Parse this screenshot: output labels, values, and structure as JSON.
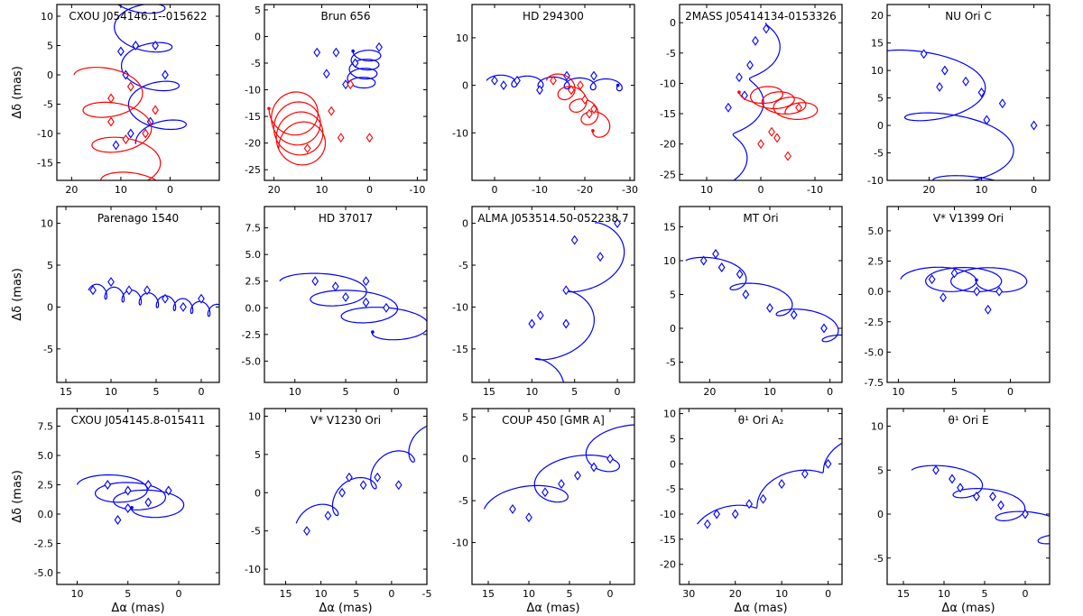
{
  "figure": {
    "xlabel": "Δα (mas)",
    "ylabel": "Δδ (mas)",
    "colors": {
      "primary": "#0000ff",
      "secondary": "#ff0000",
      "axis": "#000000"
    }
  },
  "chart_data": [
    {
      "type": "line",
      "title": "CXOU J054146.1--015622",
      "xlim": [
        23,
        -10
      ],
      "ylim": [
        -18,
        12
      ],
      "xticks": [
        20,
        10,
        0
      ],
      "yticks": [
        10,
        5,
        0,
        -5,
        -10,
        -15
      ],
      "series": [
        {
          "name": "primary",
          "color": "#0000ff",
          "cx": 6,
          "cy": -5.5,
          "rx": 5.5,
          "ry": 2.2,
          "vx": 0.05,
          "vy": 0.8,
          "n": 4,
          "start": [
            1.5,
            -11.8
          ],
          "markers": 6,
          "sampled": [
            [
              10,
              4
            ],
            [
              7,
              5
            ],
            [
              3,
              5
            ],
            [
              1,
              0
            ],
            [
              9,
              0
            ],
            [
              4,
              -8
            ],
            [
              8,
              -10
            ],
            [
              11,
              -12
            ]
          ]
        },
        {
          "name": "secondary",
          "color": "#ff0000",
          "cx": 7,
          "cy": -5,
          "rx": 6.5,
          "ry": 2.6,
          "vx": -0.05,
          "vy": -0.75,
          "n": 4,
          "start": [
            13,
            0
          ],
          "markers": 7,
          "sampled": [
            [
              12,
              -4
            ],
            [
              8,
              -2
            ],
            [
              3,
              -6
            ],
            [
              12,
              -8
            ],
            [
              5,
              -10
            ],
            [
              9,
              -11
            ]
          ]
        }
      ]
    },
    {
      "type": "line",
      "title": "Brun 656",
      "xlim": [
        22,
        -12
      ],
      "ylim": [
        -27,
        6
      ],
      "xticks": [
        20,
        10,
        0,
        -10
      ],
      "yticks": [
        5,
        0,
        -5,
        -10,
        -15,
        -20,
        -25
      ],
      "series": [
        {
          "name": "primary",
          "color": "#0000ff",
          "cx": 8,
          "cy": -6.5,
          "rx": 3,
          "ry": 1.4,
          "vx": -0.3,
          "vy": 0.15,
          "n": 4,
          "start": [
            2,
            -9.5
          ],
          "markers": 6,
          "sampled": [
            [
              11,
              -3
            ],
            [
              7,
              -3
            ],
            [
              3,
              -5
            ],
            [
              9,
              -7
            ],
            [
              5,
              -9
            ],
            [
              -2,
              -2
            ]
          ]
        },
        {
          "name": "secondary",
          "color": "#ff0000",
          "cx": 6,
          "cy": -11,
          "rx": 5,
          "ry": 4.5,
          "vx": 0.4,
          "vy": -0.1,
          "n": 4,
          "start": [
            14,
            -21
          ],
          "markers": 5,
          "sampled": [
            [
              13,
              -21
            ],
            [
              8,
              -14
            ],
            [
              4,
              -9
            ],
            [
              0,
              -19
            ],
            [
              6,
              -19
            ]
          ]
        }
      ]
    },
    {
      "type": "line",
      "title": "HD 294300",
      "xlim": [
        5,
        -31
      ],
      "ylim": [
        -20,
        17
      ],
      "xticks": [
        0,
        -10,
        -20,
        -30
      ],
      "yticks": [
        10,
        0,
        -10
      ],
      "series": [
        {
          "name": "primary",
          "color": "#0000ff",
          "cx": -4,
          "cy": 0,
          "rx": 1.8,
          "ry": 1.2,
          "vx": -0.8,
          "vy": 0,
          "n": 5,
          "start": [
            0,
            1
          ],
          "markers": 4,
          "sampled": [
            [
              0,
              1
            ],
            [
              -2,
              0
            ],
            [
              -5,
              1
            ],
            [
              -10,
              -1
            ],
            [
              -16,
              2
            ],
            [
              -22,
              2
            ]
          ]
        },
        {
          "name": "secondary",
          "color": "#ff0000",
          "cx": -18,
          "cy": -2,
          "rx": 2.5,
          "ry": 2,
          "vx": -0.25,
          "vy": -0.3,
          "n": 4,
          "start": [
            -14,
            1
          ],
          "markers": 7,
          "sampled": [
            [
              -13,
              1
            ],
            [
              -17,
              -1
            ],
            [
              -20,
              -3
            ],
            [
              -22,
              -5
            ],
            [
              -19,
              0
            ],
            [
              -21,
              -6
            ]
          ]
        }
      ]
    },
    {
      "type": "line",
      "title": "2MASS J05414134-0153326",
      "xlim": [
        15,
        -15
      ],
      "ylim": [
        -26,
        3
      ],
      "xticks": [
        10,
        0,
        -10
      ],
      "yticks": [
        0,
        -5,
        -10,
        -15,
        -20,
        -25
      ],
      "series": [
        {
          "name": "primary",
          "color": "#0000ff",
          "cx": 2,
          "cy": -6,
          "rx": 2,
          "ry": 1,
          "vx": 0.35,
          "vy": -1.3,
          "n": 6,
          "start": [
            -3,
            0
          ],
          "markers": 6,
          "sampled": [
            [
              -1,
              -1
            ],
            [
              1,
              -3
            ],
            [
              2,
              -7
            ],
            [
              4,
              -9
            ],
            [
              3,
              -12
            ],
            [
              6,
              -14
            ]
          ]
        },
        {
          "name": "secondary",
          "color": "#ff0000",
          "cx": -2,
          "cy": -19,
          "rx": 3.5,
          "ry": 1.6,
          "vx": 0.1,
          "vy": 0.3,
          "n": 4,
          "start": [
            -8,
            -15
          ],
          "markers": 5,
          "sampled": [
            [
              -7,
              -14
            ],
            [
              -2,
              -18
            ],
            [
              0,
              -20
            ],
            [
              -3,
              -19
            ],
            [
              -5,
              -22
            ]
          ]
        }
      ]
    },
    {
      "type": "line",
      "title": "NU Ori C",
      "xlim": [
        28,
        -3
      ],
      "ylim": [
        -10,
        22
      ],
      "xticks": [
        20,
        10,
        0
      ],
      "yticks": [
        20,
        15,
        10,
        5,
        0,
        -5,
        -10
      ],
      "series": [
        {
          "name": "primary",
          "color": "#0000ff",
          "cx": 12,
          "cy": 5,
          "rx": 9,
          "ry": 3,
          "vx": -0.5,
          "vy": -1.5,
          "n": 4,
          "start": [
            21,
            13
          ],
          "markers": 7,
          "sampled": [
            [
              21,
              13
            ],
            [
              17,
              10
            ],
            [
              13,
              8
            ],
            [
              18,
              7
            ],
            [
              10,
              6
            ],
            [
              6,
              4
            ],
            [
              9,
              1
            ],
            [
              0,
              0
            ]
          ]
        }
      ]
    },
    {
      "type": "line",
      "title": "Parenago 1540",
      "xlim": [
        16,
        -2
      ],
      "ylim": [
        -9,
        12
      ],
      "xticks": [
        15,
        10,
        5,
        0
      ],
      "yticks": [
        10,
        5,
        0,
        -5
      ],
      "series": [
        {
          "name": "primary",
          "color": "#0000ff",
          "cx": 6,
          "cy": 1.5,
          "rx": 0.5,
          "ry": 0.8,
          "vx": -0.25,
          "vy": -0.05,
          "n": 18,
          "start": [
            12,
            2
          ],
          "markers": 3,
          "sampled": [
            [
              12,
              2
            ],
            [
              10,
              3
            ],
            [
              8,
              2
            ],
            [
              6,
              2
            ],
            [
              4,
              1
            ],
            [
              2,
              0
            ],
            [
              0,
              1
            ]
          ]
        }
      ]
    },
    {
      "type": "line",
      "title": "HD 37017",
      "xlim": [
        13,
        -3
      ],
      "ylim": [
        -7,
        9.5
      ],
      "xticks": [
        10,
        5,
        0
      ],
      "yticks": [
        7.5,
        5.0,
        2.5,
        0.0,
        -2.5,
        -5.0
      ],
      "series": [
        {
          "name": "primary",
          "color": "#0000ff",
          "cx": 4.5,
          "cy": 1.5,
          "rx": 3.5,
          "ry": 1.1,
          "vx": -0.3,
          "vy": -0.2,
          "n": 3,
          "start": [
            8,
            2.5
          ],
          "markers": 4,
          "sampled": [
            [
              8,
              2.5
            ],
            [
              6,
              2
            ],
            [
              3,
              2.5
            ],
            [
              5,
              1
            ],
            [
              3,
              0.5
            ],
            [
              1,
              0
            ]
          ]
        }
      ]
    },
    {
      "type": "line",
      "title": "ALMA J053514.50-052238.7",
      "xlim": [
        17,
        -2
      ],
      "ylim": [
        -19,
        2
      ],
      "xticks": [
        15,
        10,
        5,
        0
      ],
      "yticks": [
        0,
        -5,
        -10,
        -15
      ],
      "series": [
        {
          "name": "primary",
          "color": "#0000ff",
          "cx": 5,
          "cy": -6,
          "rx": 2.5,
          "ry": 1.5,
          "vx": 0.4,
          "vy": -1.1,
          "n": 5,
          "start": [
            0,
            0
          ],
          "markers": 5,
          "sampled": [
            [
              0,
              0
            ],
            [
              5,
              -2
            ],
            [
              2,
              -4
            ],
            [
              6,
              -8
            ],
            [
              9,
              -11
            ],
            [
              6,
              -12
            ],
            [
              10,
              -12
            ]
          ]
        }
      ]
    },
    {
      "type": "line",
      "title": "MT Ori",
      "xlim": [
        25,
        -2
      ],
      "ylim": [
        -8,
        18
      ],
      "xticks": [
        20,
        10,
        0
      ],
      "yticks": [
        15,
        10,
        5,
        0,
        -5
      ],
      "series": [
        {
          "name": "primary",
          "color": "#0000ff",
          "cx": 11,
          "cy": 5,
          "rx": 3,
          "ry": 1.3,
          "vx": -0.9,
          "vy": -0.45,
          "n": 5,
          "start": [
            21,
            10
          ],
          "markers": 7,
          "sampled": [
            [
              21,
              10
            ],
            [
              19,
              11
            ],
            [
              18,
              9
            ],
            [
              15,
              8
            ],
            [
              14,
              5
            ],
            [
              10,
              3
            ],
            [
              6,
              2
            ],
            [
              1,
              0
            ]
          ]
        }
      ]
    },
    {
      "type": "line",
      "title": "V* V1399 Ori",
      "xlim": [
        11,
        -3.5
      ],
      "ylim": [
        -7.5,
        7
      ],
      "xticks": [
        10,
        5,
        0
      ],
      "yticks": [
        5.0,
        2.5,
        0.0,
        -2.5,
        -5.0,
        -7.5
      ],
      "series": [
        {
          "name": "primary",
          "color": "#0000ff",
          "cx": 4,
          "cy": 0,
          "rx": 2.8,
          "ry": 1,
          "vx": -0.2,
          "vy": 0.05,
          "n": 3,
          "start": [
            7,
            1
          ],
          "markers": 5,
          "sampled": [
            [
              7,
              1
            ],
            [
              5,
              1.5
            ],
            [
              3,
              0
            ],
            [
              6,
              -0.5
            ],
            [
              2,
              -1.5
            ],
            [
              1,
              0
            ]
          ]
        }
      ]
    },
    {
      "type": "line",
      "title": "CXOU J054145.8-015411",
      "xlim": [
        12,
        -4
      ],
      "ylim": [
        -6,
        9
      ],
      "xticks": [
        10,
        5,
        0
      ],
      "yticks": [
        7.5,
        5.0,
        2.5,
        0.0,
        -2.5,
        -5.0
      ],
      "series": [
        {
          "name": "primary",
          "color": "#0000ff",
          "cx": 3.5,
          "cy": 1.5,
          "rx": 3,
          "ry": 1,
          "vx": -0.1,
          "vy": -0.05,
          "n": 3,
          "start": [
            7,
            2.5
          ],
          "markers": 6,
          "sampled": [
            [
              7,
              2.5
            ],
            [
              5,
              2
            ],
            [
              3,
              2.5
            ],
            [
              1,
              2
            ],
            [
              5,
              0.5
            ],
            [
              6,
              -0.5
            ],
            [
              3,
              1
            ]
          ]
        }
      ]
    },
    {
      "type": "line",
      "title": "V* V1230 Ori",
      "xlim": [
        18,
        -5
      ],
      "ylim": [
        -12,
        11
      ],
      "xticks": [
        15,
        10,
        5,
        0,
        -5
      ],
      "yticks": [
        10,
        5,
        0,
        -5,
        -10
      ],
      "series": [
        {
          "name": "primary",
          "color": "#0000ff",
          "cx": 6,
          "cy": 0,
          "rx": 1.5,
          "ry": 1.5,
          "vx": -0.7,
          "vy": 0.45,
          "n": 6,
          "start": [
            12,
            -4
          ],
          "markers": 6,
          "sampled": [
            [
              12,
              -5
            ],
            [
              9,
              -3
            ],
            [
              7,
              0
            ],
            [
              6,
              2
            ],
            [
              4,
              1
            ],
            [
              2,
              2
            ],
            [
              -1,
              1
            ]
          ]
        }
      ]
    },
    {
      "type": "line",
      "title": "COUP 450 [GMR A]",
      "xlim": [
        17,
        -3
      ],
      "ylim": [
        -15,
        6
      ],
      "xticks": [
        15,
        10,
        5,
        0
      ],
      "yticks": [
        5,
        0,
        -5,
        -10
      ],
      "series": [
        {
          "name": "primary",
          "color": "#0000ff",
          "cx": 6,
          "cy": -3,
          "rx": 3.5,
          "ry": 1.8,
          "vx": -0.85,
          "vy": 0.5,
          "n": 6,
          "start": [
            12,
            -6
          ],
          "markers": 7,
          "sampled": [
            [
              12,
              -6
            ],
            [
              10,
              -7
            ],
            [
              8,
              -4
            ],
            [
              6,
              -3
            ],
            [
              4,
              -2
            ],
            [
              2,
              -1
            ],
            [
              0,
              0
            ]
          ]
        }
      ]
    },
    {
      "type": "line",
      "title": "θ¹ Ori A₂",
      "xlim": [
        32,
        -3
      ],
      "ylim": [
        -24,
        11
      ],
      "xticks": [
        30,
        20,
        10,
        0
      ],
      "yticks": [
        10,
        5,
        0,
        -5,
        -10,
        -15,
        -20
      ],
      "series": [
        {
          "name": "primary",
          "color": "#0000ff",
          "cx": 14,
          "cy": -7,
          "rx": 2.2,
          "ry": 1.6,
          "vx": -2,
          "vy": 1,
          "n": 7,
          "start": [
            26,
            -12
          ],
          "markers": 7,
          "sampled": [
            [
              26,
              -12
            ],
            [
              24,
              -10
            ],
            [
              20,
              -10
            ],
            [
              17,
              -8
            ],
            [
              14,
              -7
            ],
            [
              10,
              -4
            ],
            [
              5,
              -2
            ],
            [
              0,
              0
            ]
          ]
        }
      ]
    },
    {
      "type": "line",
      "title": "θ¹ Ori E",
      "xlim": [
        17,
        -3
      ],
      "ylim": [
        -8,
        12
      ],
      "xticks": [
        15,
        10,
        5,
        0
      ],
      "yticks": [
        10,
        5,
        0,
        -5
      ],
      "series": [
        {
          "name": "primary",
          "color": "#0000ff",
          "cx": 6,
          "cy": 2.5,
          "rx": 3,
          "ry": 1.1,
          "vx": -0.7,
          "vy": -0.35,
          "n": 6,
          "start": [
            11,
            5
          ],
          "markers": 7,
          "sampled": [
            [
              11,
              5
            ],
            [
              9,
              4
            ],
            [
              8,
              3
            ],
            [
              6,
              2
            ],
            [
              4,
              2
            ],
            [
              3,
              1
            ],
            [
              0,
              0
            ]
          ]
        }
      ]
    }
  ]
}
